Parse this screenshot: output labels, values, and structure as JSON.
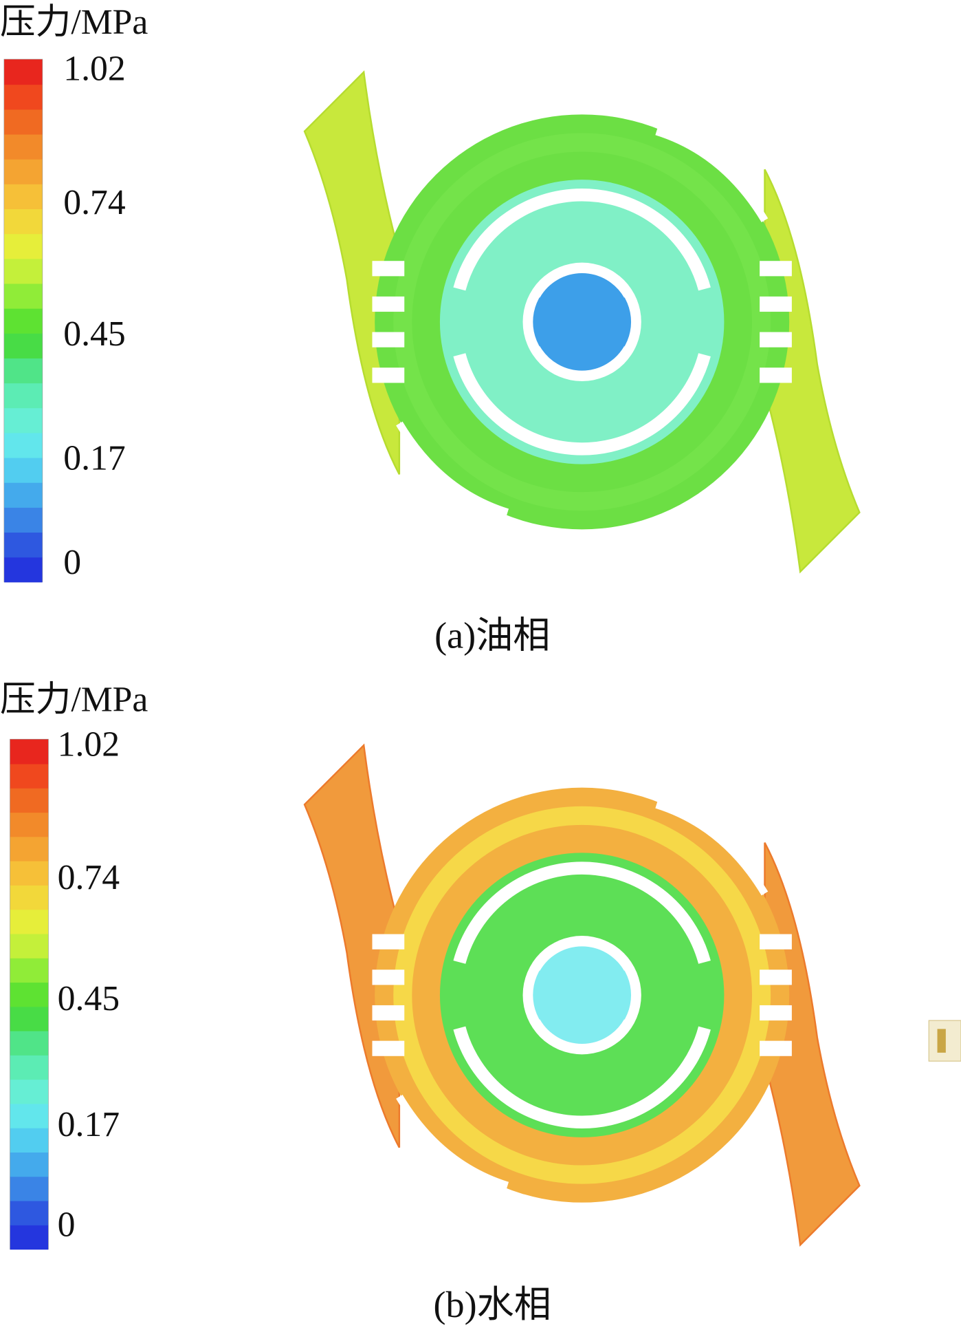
{
  "panels": [
    {
      "colorbar": {
        "title": "压力/MPa",
        "ticks": [
          "1.02",
          "0.74",
          "0.45",
          "0.17",
          "0"
        ]
      },
      "caption": "(a)油相"
    },
    {
      "colorbar": {
        "title": "压力/MPa",
        "ticks": [
          "1.02",
          "0.74",
          "0.45",
          "0.17",
          "0"
        ]
      },
      "caption": "(b)水相"
    }
  ]
}
